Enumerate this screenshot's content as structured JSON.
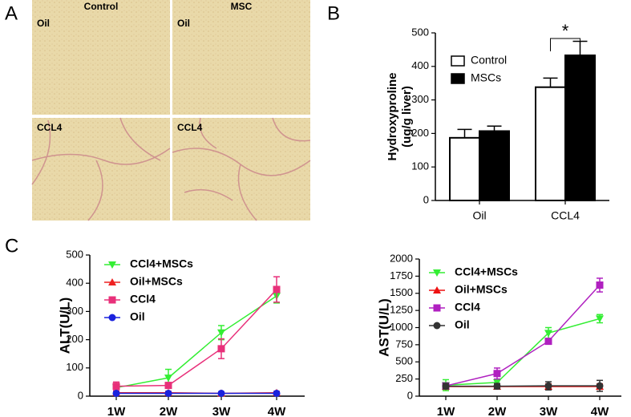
{
  "figure": {
    "panel_labels": [
      "A",
      "B",
      "C"
    ],
    "micrographs": {
      "columns": [
        "Control",
        "MSC"
      ],
      "rows": [
        "Oil",
        "CCL4"
      ]
    }
  },
  "chart_data": [
    {
      "type": "bar",
      "ylabel": [
        "Hydroxyproline",
        "(ug/g liver)"
      ],
      "categories": [
        "Oil",
        "CCL4"
      ],
      "series": [
        {
          "name": "Control",
          "color": "#ffffff",
          "values": [
            187,
            338
          ],
          "errors": [
            25,
            27
          ]
        },
        {
          "name": "MSCs",
          "color": "#000000",
          "values": [
            207,
            433
          ],
          "errors": [
            15,
            42
          ]
        }
      ],
      "ylim": [
        0,
        500
      ],
      "yticks": [
        0,
        100,
        200,
        300,
        400,
        500
      ],
      "annotation": "*",
      "legend": "upper left"
    },
    {
      "type": "line",
      "ylabel": "ALT(U/L)",
      "categories": [
        "1W",
        "2W",
        "3W",
        "4W"
      ],
      "series": [
        {
          "name": "CCl4+MSCs",
          "color": "#33ee33",
          "marker": "triangle-down",
          "values": [
            30,
            65,
            225,
            355
          ],
          "errors": [
            15,
            30,
            25,
            25
          ]
        },
        {
          "name": "Oil+MSCs",
          "color": "#ee2222",
          "marker": "triangle-up",
          "values": [
            12,
            12,
            10,
            12
          ],
          "errors": [
            5,
            5,
            5,
            5
          ]
        },
        {
          "name": "CCl4",
          "color": "#e8307a",
          "marker": "square",
          "values": [
            35,
            38,
            168,
            378
          ],
          "errors": [
            15,
            10,
            35,
            45
          ]
        },
        {
          "name": "Oil",
          "color": "#1a22dd",
          "marker": "circle",
          "values": [
            10,
            10,
            10,
            10
          ],
          "errors": [
            4,
            4,
            4,
            4
          ]
        }
      ],
      "ylim": [
        0,
        500
      ],
      "yticks": [
        0,
        100,
        200,
        300,
        400,
        500
      ],
      "legend": "upper left"
    },
    {
      "type": "line",
      "ylabel": "AST(U/L)",
      "categories": [
        "1W",
        "2W",
        "3W",
        "4W"
      ],
      "series": [
        {
          "name": "CCl4+MSCs",
          "color": "#33ee33",
          "marker": "triangle-down",
          "values": [
            160,
            200,
            920,
            1130
          ],
          "errors": [
            80,
            40,
            80,
            60
          ]
        },
        {
          "name": "Oil+MSCs",
          "color": "#ee1111",
          "marker": "triangle-up",
          "values": [
            140,
            140,
            140,
            140
          ],
          "errors": [
            40,
            30,
            40,
            40
          ]
        },
        {
          "name": "CCl4",
          "color": "#b020c0",
          "marker": "square",
          "values": [
            150,
            330,
            800,
            1620
          ],
          "errors": [
            40,
            80,
            40,
            100
          ]
        },
        {
          "name": "Oil",
          "color": "#333333",
          "marker": "circle",
          "values": [
            145,
            145,
            150,
            150
          ],
          "errors": [
            40,
            40,
            60,
            80
          ]
        }
      ],
      "ylim": [
        0,
        2000
      ],
      "yticks": [
        0,
        250,
        500,
        750,
        1000,
        1250,
        1500,
        1750,
        2000
      ],
      "legend": "upper left"
    }
  ]
}
